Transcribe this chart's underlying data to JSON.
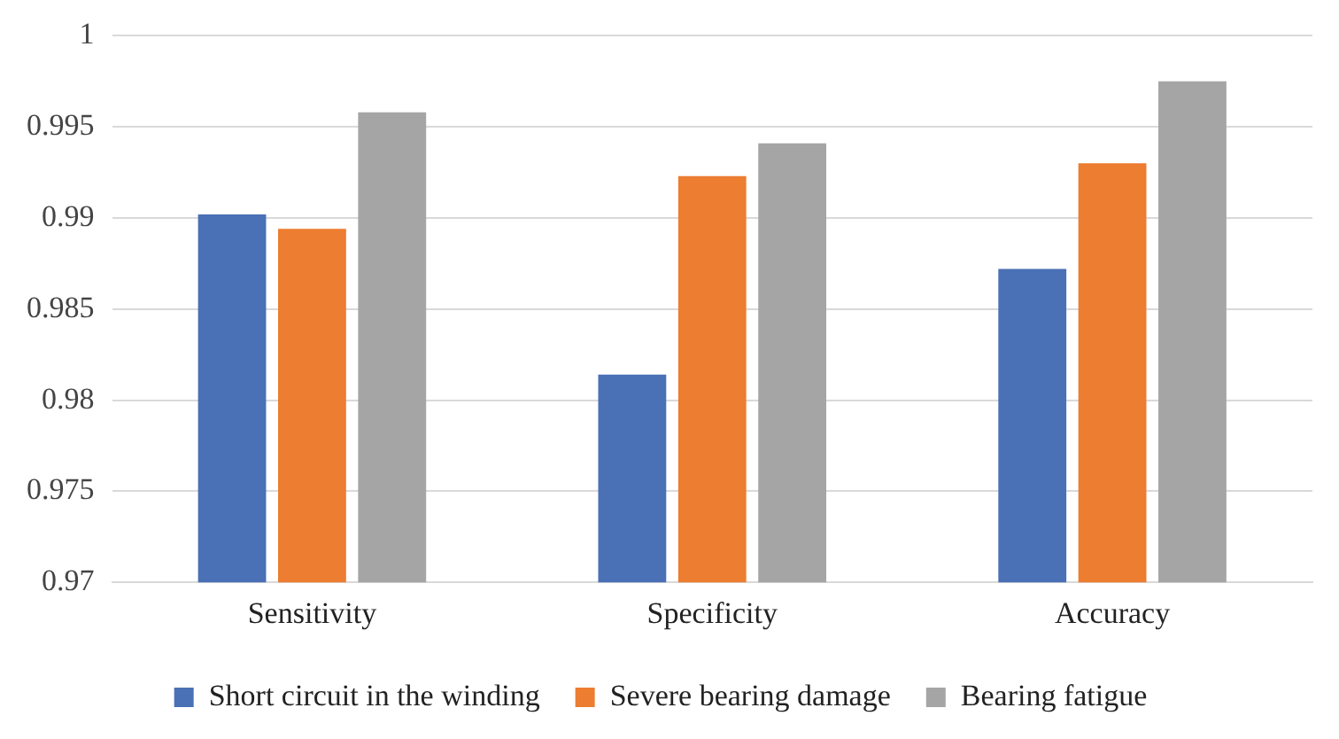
{
  "chart_data": {
    "type": "bar",
    "categories": [
      "Sensitivity",
      "Specificity",
      "Accuracy"
    ],
    "series": [
      {
        "name": "Short circuit in the winding",
        "color": "#4a70b5",
        "values": [
          0.9902,
          0.9814,
          0.9872
        ]
      },
      {
        "name": "Severe bearing damage",
        "color": "#ec7d31",
        "values": [
          0.9894,
          0.9923,
          0.993
        ]
      },
      {
        "name": "Bearing fatigue",
        "color": "#a5a5a5",
        "values": [
          0.9958,
          0.9941,
          0.9975
        ]
      }
    ],
    "ylim": [
      0.97,
      1
    ],
    "yticks": [
      0.97,
      0.975,
      0.98,
      0.985,
      0.99,
      0.995,
      1
    ],
    "grid": "y",
    "legend": "bottom"
  }
}
